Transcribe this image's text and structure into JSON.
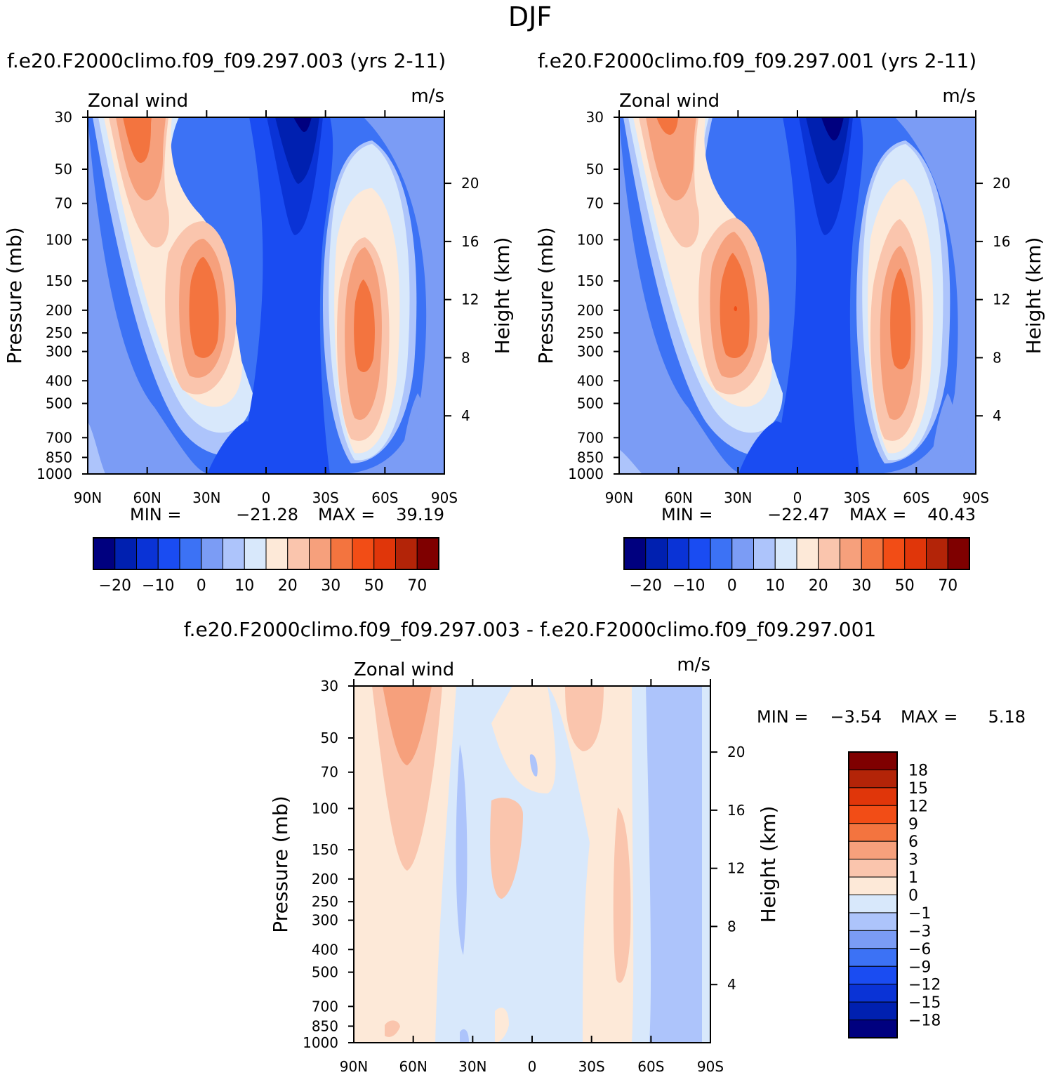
{
  "figure": {
    "title": "DJF",
    "panel_left_title": "f.e20.F2000climo.f09_f09.297.003 (yrs 2-11)",
    "panel_right_title": "f.e20.F2000climo.f09_f09.297.001 (yrs 2-11)",
    "diff_title": "f.e20.F2000climo.f09_f09.297.003 - f.e20.F2000climo.f09_f09.297.001"
  },
  "chart_data": [
    {
      "type": "heatmap",
      "name": "zonal-wind-case-003",
      "title": "f.e20.F2000climo.f09_f09.297.003 (yrs 2-11)",
      "field_label": "Zonal wind",
      "units": "m/s",
      "xlabel": "",
      "ylabel": "Pressure (mb)",
      "ylabel_right": "Height (km)",
      "x_ticks": [
        "90N",
        "60N",
        "30N",
        "0",
        "30S",
        "60S",
        "90S"
      ],
      "y_ticks": [
        30,
        50,
        70,
        100,
        150,
        200,
        250,
        300,
        400,
        500,
        700,
        850,
        1000
      ],
      "height_ticks": [
        4,
        8,
        12,
        16,
        20
      ],
      "stats": {
        "min_label": "MIN =",
        "min": "-21.28",
        "max_label": "MAX =",
        "max": "39.19"
      },
      "colorbar": {
        "levels": [
          -20,
          -15,
          -10,
          -5,
          0,
          5,
          10,
          15,
          20,
          25,
          30,
          40,
          50,
          60,
          70
        ],
        "tick_labels": [
          "-20",
          "-10",
          "0",
          "10",
          "20",
          "30",
          "50",
          "70"
        ],
        "colors": [
          "#00007f",
          "#0020b0",
          "#0a33d6",
          "#1a4cf2",
          "#3c72f5",
          "#7b9cf5",
          "#adc4fb",
          "#d8e8fb",
          "#fde9d8",
          "#fac5ad",
          "#f6a07c",
          "#f3743f",
          "#f24d16",
          "#e0360a",
          "#b32408",
          "#7f0000"
        ]
      }
    },
    {
      "type": "heatmap",
      "name": "zonal-wind-case-001",
      "title": "f.e20.F2000climo.f09_f09.297.001 (yrs 2-11)",
      "field_label": "Zonal wind",
      "units": "m/s",
      "xlabel": "",
      "ylabel": "Pressure (mb)",
      "ylabel_right": "Height (km)",
      "x_ticks": [
        "90N",
        "60N",
        "30N",
        "0",
        "30S",
        "60S",
        "90S"
      ],
      "y_ticks": [
        30,
        50,
        70,
        100,
        150,
        200,
        250,
        300,
        400,
        500,
        700,
        850,
        1000
      ],
      "height_ticks": [
        4,
        8,
        12,
        16,
        20
      ],
      "stats": {
        "min_label": "MIN =",
        "min": "-22.47",
        "max_label": "MAX =",
        "max": "40.43"
      },
      "colorbar": {
        "levels": [
          -20,
          -15,
          -10,
          -5,
          0,
          5,
          10,
          15,
          20,
          25,
          30,
          40,
          50,
          60,
          70
        ],
        "tick_labels": [
          "-20",
          "-10",
          "0",
          "10",
          "20",
          "30",
          "50",
          "70"
        ],
        "colors": [
          "#00007f",
          "#0020b0",
          "#0a33d6",
          "#1a4cf2",
          "#3c72f5",
          "#7b9cf5",
          "#adc4fb",
          "#d8e8fb",
          "#fde9d8",
          "#fac5ad",
          "#f6a07c",
          "#f3743f",
          "#f24d16",
          "#e0360a",
          "#b32408",
          "#7f0000"
        ]
      }
    },
    {
      "type": "heatmap",
      "name": "zonal-wind-difference",
      "title": "f.e20.F2000climo.f09_f09.297.003 - f.e20.F2000climo.f09_f09.297.001",
      "field_label": "Zonal wind",
      "units": "m/s",
      "xlabel": "",
      "ylabel": "Pressure (mb)",
      "ylabel_right": "Height (km)",
      "x_ticks": [
        "90N",
        "60N",
        "30N",
        "0",
        "30S",
        "60S",
        "90S"
      ],
      "y_ticks": [
        30,
        50,
        70,
        100,
        150,
        200,
        250,
        300,
        400,
        500,
        700,
        850,
        1000
      ],
      "height_ticks": [
        4,
        8,
        12,
        16,
        20
      ],
      "stats": {
        "min_label": "MIN =",
        "min": "-3.54",
        "max_label": "MAX =",
        "max": "5.18"
      },
      "colorbar": {
        "levels": [
          -18,
          -15,
          -12,
          -9,
          -6,
          -3,
          -1,
          0,
          1,
          3,
          6,
          9,
          12,
          15,
          18
        ],
        "tick_labels": [
          "18",
          "15",
          "12",
          "9",
          "6",
          "3",
          "1",
          "0",
          "-1",
          "-3",
          "-6",
          "-9",
          "-12",
          "-15",
          "-18"
        ],
        "colors": [
          "#00007f",
          "#0020b0",
          "#0a33d6",
          "#1a4cf2",
          "#3c72f5",
          "#7b9cf5",
          "#adc4fb",
          "#d8e8fb",
          "#fde9d8",
          "#fac5ad",
          "#f6a07c",
          "#f3743f",
          "#f24d16",
          "#e0360a",
          "#b32408",
          "#7f0000"
        ]
      }
    }
  ]
}
